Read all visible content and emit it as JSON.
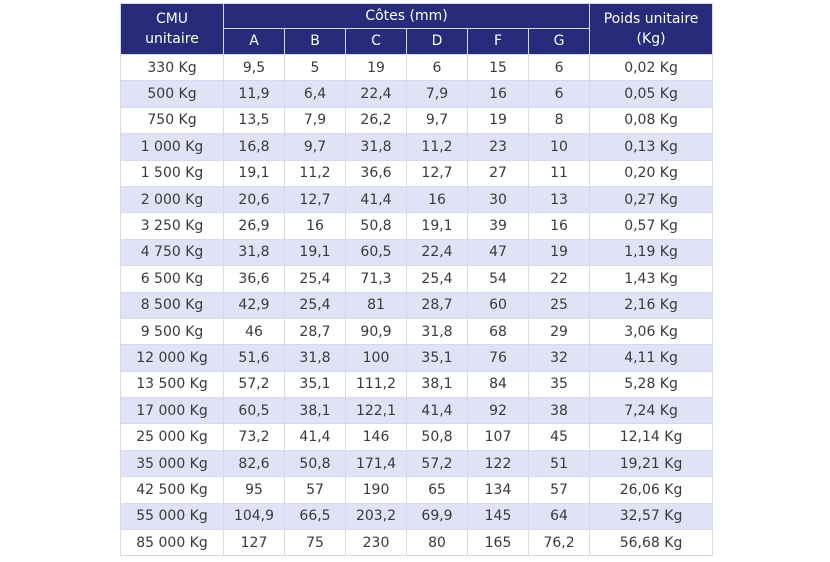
{
  "header": {
    "cmu_label": "CMU unitaire",
    "cotes_label": "Côtes (mm)",
    "poids_label": "Poids unitaire (Kg)",
    "dims": [
      "A",
      "B",
      "C",
      "D",
      "F",
      "G"
    ]
  },
  "rows": [
    {
      "cmu": "330 Kg",
      "a": "9,5",
      "b": "5",
      "c": "19",
      "d": "6",
      "f": "15",
      "g": "6",
      "poids": "0,02 Kg"
    },
    {
      "cmu": "500 Kg",
      "a": "11,9",
      "b": "6,4",
      "c": "22,4",
      "d": "7,9",
      "f": "16",
      "g": "6",
      "poids": "0,05 Kg"
    },
    {
      "cmu": "750 Kg",
      "a": "13,5",
      "b": "7,9",
      "c": "26,2",
      "d": "9,7",
      "f": "19",
      "g": "8",
      "poids": "0,08 Kg"
    },
    {
      "cmu": "1 000 Kg",
      "a": "16,8",
      "b": "9,7",
      "c": "31,8",
      "d": "11,2",
      "f": "23",
      "g": "10",
      "poids": "0,13 Kg"
    },
    {
      "cmu": "1 500 Kg",
      "a": "19,1",
      "b": "11,2",
      "c": "36,6",
      "d": "12,7",
      "f": "27",
      "g": "11",
      "poids": "0,20 Kg"
    },
    {
      "cmu": "2 000 Kg",
      "a": "20,6",
      "b": "12,7",
      "c": "41,4",
      "d": "16",
      "f": "30",
      "g": "13",
      "poids": "0,27 Kg"
    },
    {
      "cmu": "3 250 Kg",
      "a": "26,9",
      "b": "16",
      "c": "50,8",
      "d": "19,1",
      "f": "39",
      "g": "16",
      "poids": "0,57 Kg"
    },
    {
      "cmu": "4 750 Kg",
      "a": "31,8",
      "b": "19,1",
      "c": "60,5",
      "d": "22,4",
      "f": "47",
      "g": "19",
      "poids": "1,19 Kg"
    },
    {
      "cmu": "6 500 Kg",
      "a": "36,6",
      "b": "25,4",
      "c": "71,3",
      "d": "25,4",
      "f": "54",
      "g": "22",
      "poids": "1,43 Kg"
    },
    {
      "cmu": "8 500 Kg",
      "a": "42,9",
      "b": "25,4",
      "c": "81",
      "d": "28,7",
      "f": "60",
      "g": "25",
      "poids": "2,16 Kg"
    },
    {
      "cmu": "9 500 Kg",
      "a": "46",
      "b": "28,7",
      "c": "90,9",
      "d": "31,8",
      "f": "68",
      "g": "29",
      "poids": "3,06 Kg"
    },
    {
      "cmu": "12 000 Kg",
      "a": "51,6",
      "b": "31,8",
      "c": "100",
      "d": "35,1",
      "f": "76",
      "g": "32",
      "poids": "4,11 Kg"
    },
    {
      "cmu": "13 500 Kg",
      "a": "57,2",
      "b": "35,1",
      "c": "111,2",
      "d": "38,1",
      "f": "84",
      "g": "35",
      "poids": "5,28 Kg"
    },
    {
      "cmu": "17 000 Kg",
      "a": "60,5",
      "b": "38,1",
      "c": "122,1",
      "d": "41,4",
      "f": "92",
      "g": "38",
      "poids": "7,24 Kg"
    },
    {
      "cmu": "25 000 Kg",
      "a": "73,2",
      "b": "41,4",
      "c": "146",
      "d": "50,8",
      "f": "107",
      "g": "45",
      "poids": "12,14 Kg"
    },
    {
      "cmu": "35 000 Kg",
      "a": "82,6",
      "b": "50,8",
      "c": "171,4",
      "d": "57,2",
      "f": "122",
      "g": "51",
      "poids": "19,21 Kg"
    },
    {
      "cmu": "42 500 Kg",
      "a": "95",
      "b": "57",
      "c": "190",
      "d": "65",
      "f": "134",
      "g": "57",
      "poids": "26,06 Kg"
    },
    {
      "cmu": "55 000 Kg",
      "a": "104,9",
      "b": "66,5",
      "c": "203,2",
      "d": "69,9",
      "f": "145",
      "g": "64",
      "poids": "32,57 Kg"
    },
    {
      "cmu": "85 000 Kg",
      "a": "127",
      "b": "75",
      "c": "230",
      "d": "80",
      "f": "165",
      "g": "76,2",
      "poids": "56,68 Kg"
    }
  ]
}
